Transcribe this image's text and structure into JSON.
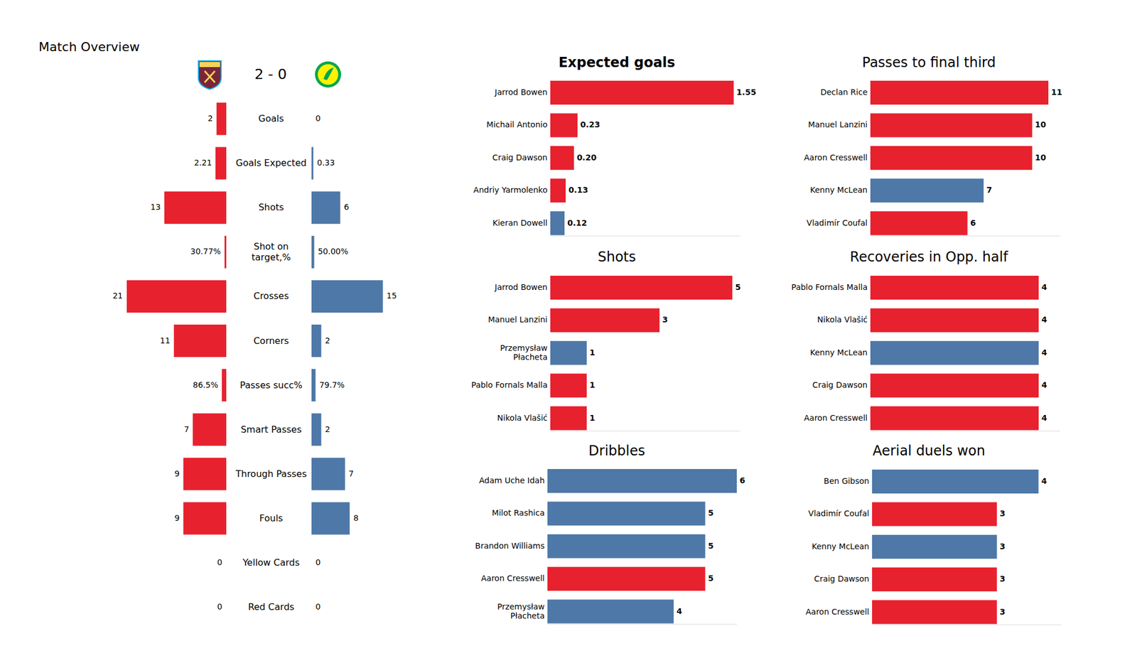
{
  "chart_data": [
    {
      "type": "bar",
      "orientation": "horizontal",
      "title": "Match Overview",
      "subtitle": "2 - 0",
      "categories": [
        "Goals",
        "Goals Expected",
        "Shots",
        "Shot on\ntarget,%",
        "Crosses",
        "Corners",
        "Passes succ%",
        "Smart Passes",
        "Through Passes",
        "Fouls",
        "Yellow Cards",
        "Red Cards"
      ],
      "series": [
        {
          "color": "#e8212e",
          "values": [
            2,
            2.21,
            13,
            0.3077,
            21,
            11,
            0.865,
            7,
            9,
            9,
            0,
            0
          ],
          "value_labels": [
            "2",
            "2.21",
            "13",
            "30.77%",
            "21",
            "11",
            "86.5%",
            "7",
            "9",
            "9",
            "0",
            "0"
          ]
        },
        {
          "color": "#4e78a7",
          "values": [
            0,
            0.33,
            6,
            0.5,
            15,
            2,
            0.797,
            2,
            7,
            8,
            0,
            0
          ],
          "value_labels": [
            "0",
            "0.33",
            "6",
            "50.00%",
            "15",
            "2",
            "79.7%",
            "2",
            "7",
            "8",
            "0",
            "0"
          ]
        }
      ],
      "xlim": [
        0,
        21
      ],
      "data_labels": true,
      "tick_labels": "y"
    },
    {
      "type": "bar",
      "orientation": "horizontal",
      "title": "Expected goals",
      "categories": [
        "Jarrod Bowen",
        "Michail Antonio",
        "Craig Dawson",
        "Andriy Yarmolenko",
        "Kieran Dowell"
      ],
      "values": [
        1.55,
        0.23,
        0.2,
        0.13,
        0.12
      ],
      "value_labels": [
        "1.55",
        "0.23",
        "0.20",
        "0.13",
        "0.12"
      ],
      "colors": [
        "#e8212e",
        "#e8212e",
        "#e8212e",
        "#e8212e",
        "#4e78a7"
      ],
      "xlim": [
        0,
        1.6
      ],
      "data_labels": true,
      "tick_labels": "y"
    },
    {
      "type": "bar",
      "orientation": "horizontal",
      "title": "Shots",
      "categories": [
        "Jarrod Bowen",
        "Manuel Lanzini",
        "Przemysław\nPłacheta",
        "Pablo Fornals Malla",
        "Nikola Vlašić"
      ],
      "values": [
        5,
        3,
        1,
        1,
        1
      ],
      "colors": [
        "#e8212e",
        "#e8212e",
        "#4e78a7",
        "#e8212e",
        "#e8212e"
      ],
      "xlim": [
        0,
        5.2
      ],
      "data_labels": true,
      "tick_labels": "y"
    },
    {
      "type": "bar",
      "orientation": "horizontal",
      "title": "Dribbles",
      "categories": [
        "Adam Uche Idah",
        "Milot Rashica",
        "Brandon Williams",
        "Aaron Cresswell",
        "Przemysław\nPłacheta"
      ],
      "values": [
        6,
        5,
        5,
        5,
        4
      ],
      "colors": [
        "#4e78a7",
        "#4e78a7",
        "#4e78a7",
        "#e8212e",
        "#4e78a7"
      ],
      "xlim": [
        0,
        6
      ],
      "data_labels": true,
      "tick_labels": "y"
    },
    {
      "type": "bar",
      "orientation": "horizontal",
      "title": "Passes to final third",
      "categories": [
        "Declan Rice",
        "Manuel Lanzini",
        "Aaron Cresswell",
        "Kenny McLean",
        "Vladimír Coufal"
      ],
      "values": [
        11,
        10,
        10,
        7,
        6
      ],
      "colors": [
        "#e8212e",
        "#e8212e",
        "#e8212e",
        "#4e78a7",
        "#e8212e"
      ],
      "xlim": [
        0,
        11.7
      ],
      "data_labels": true,
      "tick_labels": "y"
    },
    {
      "type": "bar",
      "orientation": "horizontal",
      "title": "Recoveries in Opp. half",
      "categories": [
        "Pablo Fornals Malla",
        "Nikola Vlašić",
        "Kenny McLean",
        "Craig Dawson",
        "Aaron Cresswell"
      ],
      "values": [
        4,
        4,
        4,
        4,
        4
      ],
      "colors": [
        "#e8212e",
        "#e8212e",
        "#4e78a7",
        "#e8212e",
        "#e8212e"
      ],
      "xlim": [
        0,
        4.5
      ],
      "data_labels": true,
      "tick_labels": "y"
    },
    {
      "type": "bar",
      "orientation": "horizontal",
      "title": "Aerial duels won",
      "categories": [
        "Ben Gibson",
        "Vladimír Coufal",
        "Kenny McLean",
        "Craig Dawson",
        "Aaron Cresswell"
      ],
      "values": [
        4,
        3,
        3,
        3,
        3
      ],
      "colors": [
        "#4e78a7",
        "#e8212e",
        "#4e78a7",
        "#e8212e",
        "#e8212e"
      ],
      "xlim": [
        0,
        4.55
      ],
      "data_labels": true,
      "tick_labels": "y"
    }
  ]
}
